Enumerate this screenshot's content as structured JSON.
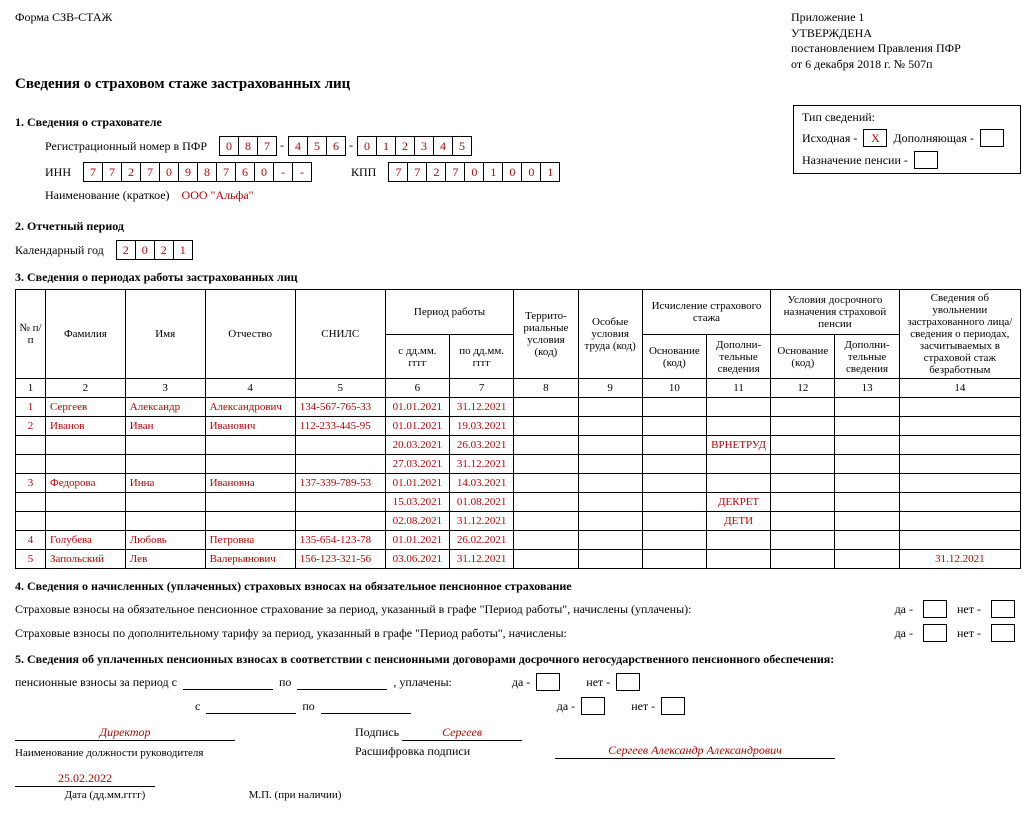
{
  "header": {
    "form_code": "Форма СЗВ-СТАЖ",
    "attachment": "Приложение 1",
    "approved": "УТВЕРЖДЕНА",
    "decree": "постановлением Правления ПФР",
    "decree_date": "от 6 декабря 2018 г. № 507п",
    "title": "Сведения о страховом стаже застрахованных лиц"
  },
  "sec1": {
    "title": "1. Сведения о страхователе",
    "reg_label": "Регистрационный номер в ПФР",
    "reg_parts": [
      [
        "0",
        "8",
        "7"
      ],
      [
        "4",
        "5",
        "6"
      ],
      [
        "0",
        "1",
        "2",
        "3",
        "4",
        "5"
      ]
    ],
    "inn_label": "ИНН",
    "inn": [
      "7",
      "7",
      "2",
      "7",
      "0",
      "9",
      "8",
      "7",
      "6",
      "0",
      "-",
      "-"
    ],
    "kpp_label": "КПП",
    "kpp": [
      "7",
      "7",
      "2",
      "7",
      "0",
      "1",
      "0",
      "0",
      "1"
    ],
    "name_label": "Наименование (краткое)",
    "name_value": "ООО \"Альфа\""
  },
  "typebox": {
    "title": "Тип сведений:",
    "initial": "Исходная -",
    "initial_mark": "Х",
    "supplement": "Дополняющая -",
    "pension": "Назначение пенсии -"
  },
  "sec2": {
    "title": "2. Отчетный период",
    "year_label": "Календарный год",
    "year": [
      "2",
      "0",
      "2",
      "1"
    ]
  },
  "sec3": {
    "title": "3. Сведения о периодах работы застрахованных лиц",
    "headers": {
      "n": "№\nп/п",
      "fam": "Фамилия",
      "name": "Имя",
      "patr": "Отчество",
      "snils": "СНИЛС",
      "period": "Период работы",
      "from": "с дд.мм. гггг",
      "to": "по дд.мм. гггг",
      "terr": "Террито-\nриальные\nусловия\n(код)",
      "spec": "Особые\nусловия\nтруда (код)",
      "stazh": "Исчисление страхового\nстажа",
      "osn": "Основание\n(код)",
      "dop": "Дополни-\nтельные\nсведения",
      "early": "Условия досрочного\nназначения страховой\nпенсии",
      "dismiss": "Сведения об\nувольнении\nзастрахованного лица/\nсведения о периодах,\nзасчитываемых\nв страховой стаж\nбезработным"
    },
    "colnums": [
      "1",
      "2",
      "3",
      "4",
      "5",
      "6",
      "7",
      "8",
      "9",
      "10",
      "11",
      "12",
      "13",
      "14"
    ],
    "rows": [
      {
        "n": "1",
        "fam": "Сергеев",
        "name": "Александр",
        "patr": "Александрович",
        "snils": "134-567-765-33",
        "from": "01.01.2021",
        "to": "31.12.2021",
        "t": "",
        "s": "",
        "o1": "",
        "d1": "",
        "o2": "",
        "d2": "",
        "u": ""
      },
      {
        "n": "2",
        "fam": "Иванов",
        "name": "Иван",
        "patr": "Иванович",
        "snils": "112-233-445-95",
        "from": "01.01.2021",
        "to": "19.03.2021",
        "t": "",
        "s": "",
        "o1": "",
        "d1": "",
        "o2": "",
        "d2": "",
        "u": ""
      },
      {
        "n": "",
        "fam": "",
        "name": "",
        "patr": "",
        "snils": "",
        "from": "20.03.2021",
        "to": "26.03.2021",
        "t": "",
        "s": "",
        "o1": "",
        "d1": "ВРНЕТРУД",
        "o2": "",
        "d2": "",
        "u": ""
      },
      {
        "n": "",
        "fam": "",
        "name": "",
        "patr": "",
        "snils": "",
        "from": "27.03.2021",
        "to": "31.12.2021",
        "t": "",
        "s": "",
        "o1": "",
        "d1": "",
        "o2": "",
        "d2": "",
        "u": ""
      },
      {
        "n": "3",
        "fam": "Федорова",
        "name": "Инна",
        "patr": "Ивановна",
        "snils": "137-339-789-53",
        "from": "01.01.2021",
        "to": "14.03.2021",
        "t": "",
        "s": "",
        "o1": "",
        "d1": "",
        "o2": "",
        "d2": "",
        "u": ""
      },
      {
        "n": "",
        "fam": "",
        "name": "",
        "patr": "",
        "snils": "",
        "from": "15.03.2021",
        "to": "01.08.2021",
        "t": "",
        "s": "",
        "o1": "",
        "d1": "ДЕКРЕТ",
        "o2": "",
        "d2": "",
        "u": ""
      },
      {
        "n": "",
        "fam": "",
        "name": "",
        "patr": "",
        "snils": "",
        "from": "02.08.2021",
        "to": "31.12.2021",
        "t": "",
        "s": "",
        "o1": "",
        "d1": "ДЕТИ",
        "o2": "",
        "d2": "",
        "u": ""
      },
      {
        "n": "4",
        "fam": "Голубева",
        "name": "Любовь",
        "patr": "Петровна",
        "snils": "135-654-123-78",
        "from": "01.01.2021",
        "to": "26.02.2021",
        "t": "",
        "s": "",
        "o1": "",
        "d1": "",
        "o2": "",
        "d2": "",
        "u": ""
      },
      {
        "n": "5",
        "fam": "Запольский",
        "name": "Лев",
        "patr": "Валерьянович",
        "snils": "156-123-321-56",
        "from": "03.06.2021",
        "to": "31.12.2021",
        "t": "",
        "s": "",
        "o1": "",
        "d1": "",
        "o2": "",
        "d2": "",
        "u": "31.12.2021"
      }
    ]
  },
  "sec4": {
    "title": "4. Сведения о начисленных (уплаченных) страховых взносах на обязательное пенсионное страхование",
    "line1": "Страховые взносы на обязательное пенсионное страхование за период, указанный в графе \"Период работы\", начислены (уплачены):",
    "line2": "Страховые взносы по дополнительному тарифу за период, указанный в графе \"Период работы\", начислены:",
    "yes": "да -",
    "no": "нет -"
  },
  "sec5": {
    "title": "5. Сведения об уплаченных пенсионных взносах в соответствии с пенсионными договорами досрочного негосударственного пенсионного обеспечения:",
    "l1": "пенсионные взносы за период с",
    "to": "по",
    "paid": ", уплачены:",
    "l2": "с",
    "yes": "да -",
    "no": "нет -"
  },
  "sig": {
    "position": "Директор",
    "position_caption": "Наименование должности руководителя",
    "sign_label": "Подпись",
    "sign_value": "Сергеев",
    "decode_label": "Расшифровка подписи",
    "decode_value": "Сергеев Александр Александрович",
    "date": "25.02.2022",
    "date_caption": "Дата (дд.мм.гггг)",
    "stamp": "М.П. (при наличии)"
  }
}
